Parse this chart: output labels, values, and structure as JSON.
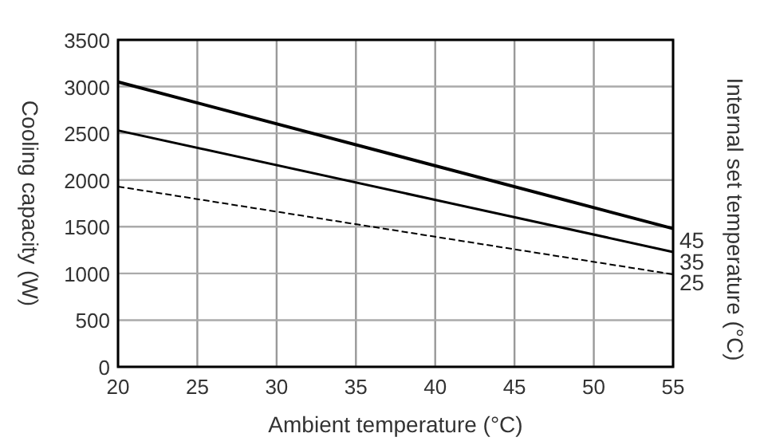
{
  "chart_data": {
    "type": "line",
    "xlabel": "Ambient temperature (°C)",
    "ylabel": "Cooling capacity (W)",
    "legend_title": "Internal set temperature (°C)",
    "x": [
      20,
      55
    ],
    "xlim": [
      20,
      55
    ],
    "xticks": [
      20,
      25,
      30,
      35,
      40,
      45,
      50,
      55
    ],
    "ylim": [
      0,
      3500
    ],
    "yticks": [
      0,
      500,
      1000,
      1500,
      2000,
      2500,
      3000,
      3500
    ],
    "grid": true,
    "marker": "none",
    "series": [
      {
        "name": "45",
        "color": "#000000",
        "values": [
          3050,
          1480
        ],
        "line_style": "solid"
      },
      {
        "name": "35",
        "color": "#000000",
        "values": [
          2530,
          1230
        ],
        "line_style": "solid"
      },
      {
        "name": "25",
        "color": "#000000",
        "values": [
          1930,
          990
        ],
        "line_style": "dashed"
      }
    ]
  }
}
